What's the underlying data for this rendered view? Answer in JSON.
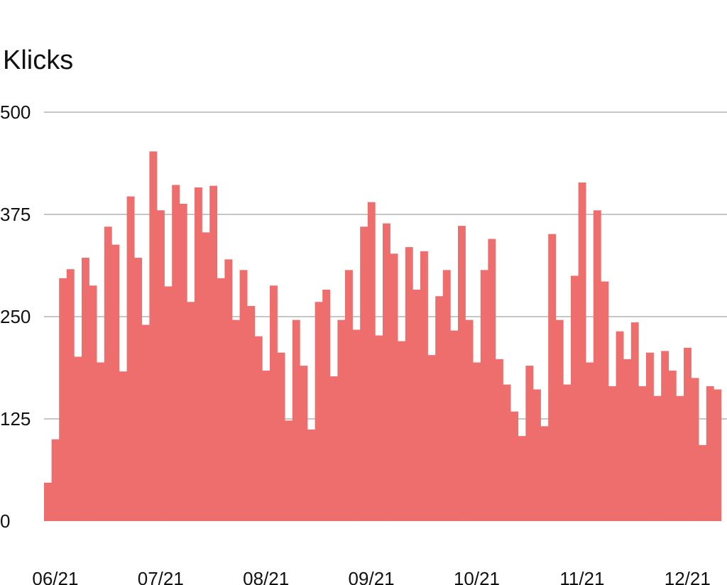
{
  "chart_data": {
    "type": "bar",
    "title": "Klicks",
    "xlabel": "",
    "ylabel": "",
    "ylim": [
      0,
      500
    ],
    "grid": true,
    "bar_color": "#ED6E6C",
    "grid_color": "#8C8C8C",
    "yticks": [
      0,
      125,
      250,
      375,
      500
    ],
    "ytick_labels": [
      "0",
      "125",
      "250",
      "375",
      "500"
    ],
    "xticks": [
      {
        "label": "06/21",
        "index": 1
      },
      {
        "label": "07/21",
        "index": 15
      },
      {
        "label": "08/21",
        "index": 29
      },
      {
        "label": "09/21",
        "index": 43
      },
      {
        "label": "10/21",
        "index": 57
      },
      {
        "label": "11/21",
        "index": 71
      },
      {
        "label": "12/21",
        "index": 85
      }
    ],
    "values": [
      47,
      100,
      297,
      308,
      201,
      322,
      288,
      194,
      360,
      338,
      183,
      397,
      322,
      240,
      452,
      380,
      287,
      411,
      388,
      268,
      408,
      353,
      410,
      297,
      320,
      246,
      307,
      263,
      226,
      184,
      288,
      206,
      123,
      246,
      190,
      112,
      268,
      283,
      177,
      246,
      307,
      234,
      360,
      390,
      227,
      364,
      327,
      220,
      335,
      283,
      330,
      203,
      275,
      307,
      233,
      361,
      246,
      194,
      307,
      345,
      198,
      167,
      134,
      104,
      190,
      161,
      116,
      351,
      246,
      167,
      300,
      414,
      194,
      380,
      293,
      165,
      232,
      198,
      243,
      165,
      206,
      153,
      208,
      184,
      153,
      212,
      175,
      93,
      165,
      161
    ]
  }
}
